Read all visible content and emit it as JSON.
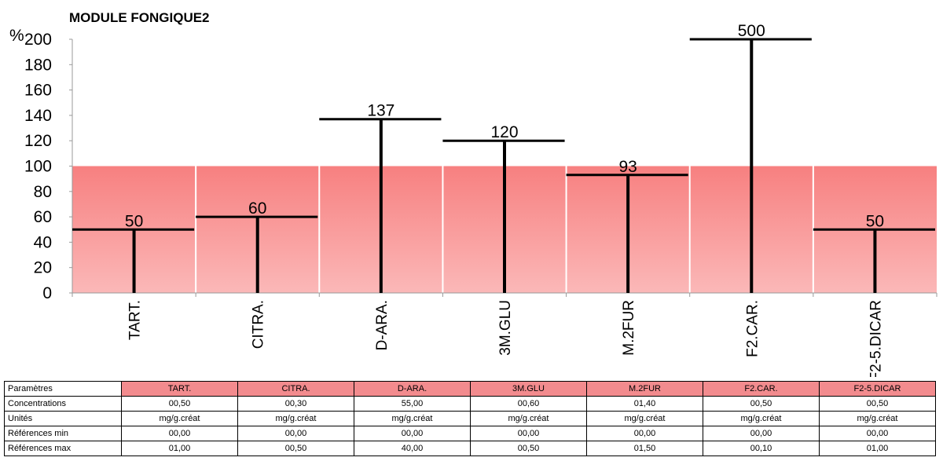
{
  "chart_data": {
    "type": "bar",
    "title": "MODULE FONGIQUE2",
    "ylabel": "%",
    "ylim": [
      0,
      200
    ],
    "yticks": [
      0,
      20,
      40,
      60,
      80,
      100,
      120,
      140,
      160,
      180,
      200
    ],
    "reference_band": [
      0,
      100
    ],
    "categories": [
      "TART.",
      "CITRA.",
      "D-ARA.",
      "3M.GLU",
      "M.2FUR",
      "F2.CAR.",
      "F2-5.DICAR"
    ],
    "values": [
      50,
      60,
      137,
      120,
      93,
      500,
      50
    ],
    "value_labels": [
      "50",
      "60",
      "137",
      "120",
      "93",
      "500",
      "50"
    ],
    "colors": {
      "band_top": "#f78080",
      "band_bottom": "#fbb8b8",
      "bar": "#000000",
      "header": "#f28b8e"
    }
  },
  "table": {
    "header": "Paramètres",
    "columns": [
      "TART.",
      "CITRA.",
      "D-ARA.",
      "3M.GLU",
      "M.2FUR",
      "F2.CAR.",
      "F2-5.DICAR"
    ],
    "rows": [
      {
        "label": "Concentrations",
        "values": [
          "00,50",
          "00,30",
          "55,00",
          "00,60",
          "01,40",
          "00,50",
          "00,50"
        ]
      },
      {
        "label": "Unités",
        "values": [
          "mg/g.créat",
          "mg/g.créat",
          "mg/g.créat",
          "mg/g.créat",
          "mg/g.créat",
          "mg/g.créat",
          "mg/g.créat"
        ]
      },
      {
        "label": "Références min",
        "values": [
          "00,00",
          "00,00",
          "00,00",
          "00,00",
          "00,00",
          "00,00",
          "00,00"
        ]
      },
      {
        "label": "Références max",
        "values": [
          "01,00",
          "00,50",
          "40,00",
          "00,50",
          "01,50",
          "00,10",
          "01,00"
        ]
      }
    ]
  }
}
